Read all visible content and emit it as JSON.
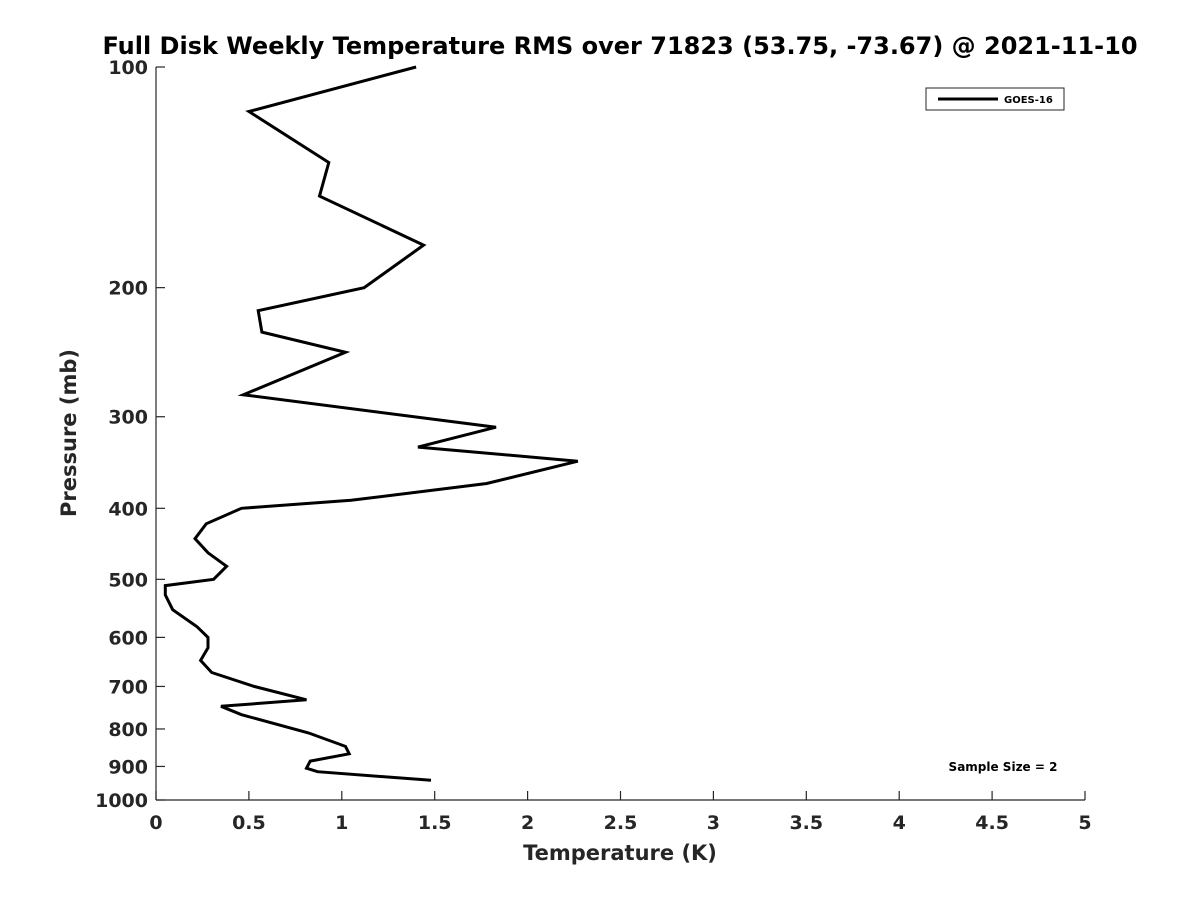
{
  "chart_data": {
    "type": "line",
    "title": "Full Disk Weekly Temperature RMS over 71823 (53.75, -73.67) @ 2021-11-10",
    "xlabel": "Temperature (K)",
    "ylabel": "Pressure (mb)",
    "xlim": [
      0,
      5
    ],
    "ylim": [
      100,
      1000
    ],
    "y_scale": "log",
    "y_reversed": true,
    "x_ticks": [
      "0",
      "0.5",
      "1",
      "1.5",
      "2",
      "2.5",
      "3",
      "3.5",
      "4",
      "4.5",
      "5"
    ],
    "y_ticks": [
      100,
      200,
      300,
      400,
      500,
      600,
      700,
      800,
      900,
      1000
    ],
    "grid": false,
    "legend_position": "top-right",
    "series": [
      {
        "name": "GOES-16",
        "color": "#000000",
        "x": [
          1.4,
          0.5,
          0.93,
          0.88,
          1.44,
          1.12,
          0.55,
          0.57,
          1.02,
          0.47,
          1.83,
          1.41,
          2.27,
          1.78,
          1.05,
          0.46,
          0.27,
          0.21,
          0.28,
          0.38,
          0.31,
          0.05,
          0.05,
          0.09,
          0.22,
          0.28,
          0.28,
          0.24,
          0.3,
          0.53,
          0.81,
          0.35,
          0.46,
          0.82,
          1.02,
          1.04,
          0.83,
          0.81,
          0.87,
          1.48
        ],
        "y": [
          100,
          115,
          135,
          150,
          175,
          200,
          215,
          230,
          245,
          280,
          310,
          330,
          345,
          370,
          390,
          400,
          420,
          440,
          460,
          480,
          500,
          510,
          525,
          550,
          580,
          600,
          620,
          645,
          670,
          700,
          730,
          745,
          765,
          810,
          845,
          865,
          885,
          905,
          915,
          940
        ]
      }
    ],
    "annotation": "Sample Size = 2"
  }
}
